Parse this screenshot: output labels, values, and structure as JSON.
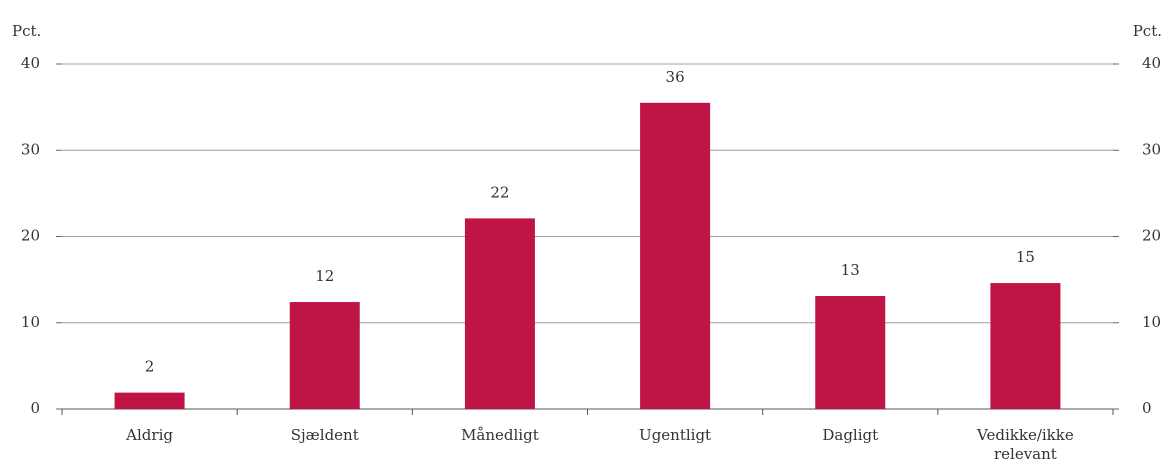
{
  "chart_data": {
    "type": "bar",
    "ylabel": "Pct.",
    "y2label": "Pct.",
    "categories": [
      "Aldrig",
      "Sjældent",
      "Månedligt",
      "Ugentligt",
      "Dagligt",
      "Vedikke/ikke relevant"
    ],
    "values": [
      1.9,
      12.4,
      22.1,
      35.5,
      13.1,
      14.6
    ],
    "value_labels": [
      "2",
      "12",
      "22",
      "36",
      "13",
      "15"
    ],
    "color": "#be1446",
    "ylim": [
      0,
      40
    ],
    "yticks": [
      0,
      10,
      20,
      30,
      40
    ],
    "y2lim": [
      0,
      40
    ],
    "y2ticks": [
      0,
      10,
      20,
      30,
      40
    ],
    "grid": true
  }
}
